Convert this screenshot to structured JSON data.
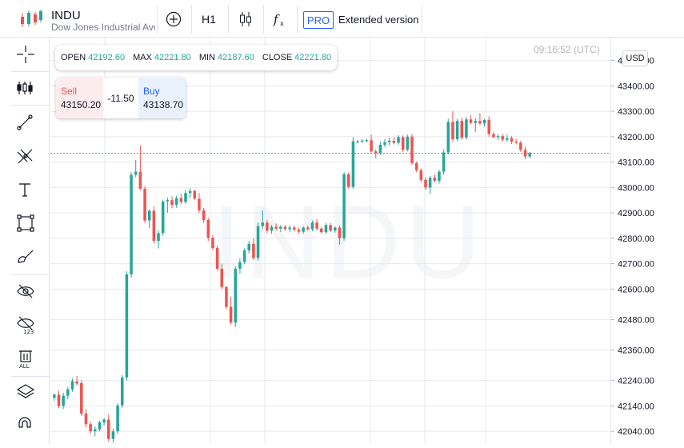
{
  "header": {
    "symbol": "INDU",
    "name": "Dow Jones Industrial Aver",
    "interval": "H1",
    "pro_badge": "PRO",
    "extended_label": "Extended version"
  },
  "ohlc": {
    "open_label": "OPEN",
    "open": "42192.60",
    "max_label": "MAX",
    "max": "42221.80",
    "min_label": "MIN",
    "min": "42187.60",
    "close_label": "CLOSE",
    "close": "42221.80"
  },
  "trade": {
    "sell_label": "Sell",
    "sell_price": "43150.20",
    "spread": "-11.50",
    "buy_label": "Buy",
    "buy_price": "43138.70"
  },
  "chart_meta": {
    "time": "09:16:52 (UTC)",
    "currency": "USD",
    "watermark": "INDU",
    "up_color": "#26a69a",
    "down_color": "#ef5350",
    "current_price_line": 43135
  },
  "sidebar_icons": [
    "crosshair-icon",
    "indicators-icon",
    "trend-line-icon",
    "fib-icon",
    "text-icon",
    "rectangle-icon",
    "brush-icon",
    "hide-drawings-icon",
    "hide-indicators-icon",
    "delete-all-icon",
    "layers-icon",
    "magnet-icon"
  ],
  "chart_data": {
    "type": "candlestick",
    "y_ticks": [
      "43500.00",
      "43400.00",
      "43300.00",
      "43200.00",
      "43100.00",
      "43000.00",
      "42900.00",
      "42800.00",
      "42700.00",
      "42600.00",
      "42480.00",
      "42360.00",
      "42240.00",
      "42140.00",
      "42040.00"
    ],
    "y_range": [
      41990,
      43590
    ],
    "candles": [
      [
        42172,
        42188,
        42160,
        42185
      ],
      [
        42184,
        42200,
        42132,
        42140
      ],
      [
        42140,
        42192,
        42128,
        42180
      ],
      [
        42180,
        42215,
        42166,
        42205
      ],
      [
        42205,
        42248,
        42196,
        42238
      ],
      [
        42236,
        42258,
        42220,
        42228
      ],
      [
        42230,
        42240,
        42100,
        42110
      ],
      [
        42110,
        42128,
        42055,
        42068
      ],
      [
        42068,
        42078,
        42030,
        42040
      ],
      [
        42040,
        42060,
        42020,
        42048
      ],
      [
        42048,
        42082,
        42040,
        42075
      ],
      [
        42075,
        42092,
        42064,
        42086
      ],
      [
        42086,
        42106,
        42000,
        42010
      ],
      [
        42010,
        42050,
        41995,
        42040
      ],
      [
        42040,
        42150,
        42030,
        42142
      ],
      [
        42142,
        42262,
        42132,
        42252
      ],
      [
        42252,
        42670,
        42240,
        42658
      ],
      [
        42658,
        43060,
        42645,
        43050
      ],
      [
        43050,
        43108,
        43040,
        43062
      ],
      [
        43062,
        43165,
        42990,
        42995
      ],
      [
        42995,
        43005,
        42860,
        42870
      ],
      [
        42870,
        42915,
        42840,
        42908
      ],
      [
        42908,
        42925,
        42780,
        42790
      ],
      [
        42790,
        42830,
        42760,
        42820
      ],
      [
        42820,
        42952,
        42810,
        42945
      ],
      [
        42945,
        42960,
        42900,
        42950
      ],
      [
        42950,
        42965,
        42918,
        42932
      ],
      [
        42932,
        42968,
        42920,
        42958
      ],
      [
        42958,
        42975,
        42935,
        42943
      ],
      [
        42943,
        42990,
        42935,
        42978
      ],
      [
        42978,
        42998,
        42960,
        42986
      ],
      [
        42986,
        42992,
        42950,
        42956
      ],
      [
        42956,
        42978,
        42900,
        42910
      ],
      [
        42910,
        42920,
        42860,
        42872
      ],
      [
        42872,
        42880,
        42790,
        42802
      ],
      [
        42802,
        42812,
        42752,
        42762
      ],
      [
        42762,
        42770,
        42672,
        42680
      ],
      [
        42680,
        42700,
        42600,
        42608
      ],
      [
        42608,
        42612,
        42520,
        42530
      ],
      [
        42530,
        42570,
        42460,
        42468
      ],
      [
        42468,
        42690,
        42450,
        42680
      ],
      [
        42680,
        42720,
        42660,
        42706
      ],
      [
        42706,
        42760,
        42698,
        42752
      ],
      [
        42752,
        42790,
        42740,
        42778
      ],
      [
        42778,
        42800,
        42715,
        42722
      ],
      [
        42722,
        42862,
        42712,
        42848
      ],
      [
        42848,
        42910,
        42835,
        42862
      ],
      [
        42862,
        42872,
        42820,
        42830
      ],
      [
        42830,
        42852,
        42818,
        42845
      ],
      [
        42845,
        42858,
        42830,
        42838
      ],
      [
        42838,
        42852,
        42825,
        42845
      ],
      [
        42845,
        42852,
        42830,
        42836
      ],
      [
        42836,
        42850,
        42824,
        42842
      ],
      [
        42842,
        42850,
        42828,
        42834
      ],
      [
        42834,
        42842,
        42818,
        42826
      ],
      [
        42826,
        42848,
        42818,
        42842
      ],
      [
        42842,
        42850,
        42830,
        42836
      ],
      [
        42836,
        42870,
        42828,
        42862
      ],
      [
        42862,
        42875,
        42830,
        42838
      ],
      [
        42838,
        42845,
        42818,
        42824
      ],
      [
        42824,
        42860,
        42816,
        42852
      ],
      [
        42852,
        42860,
        42825,
        42830
      ],
      [
        42830,
        42848,
        42822,
        42842
      ],
      [
        42842,
        42850,
        42775,
        42800
      ],
      [
        42800,
        43060,
        42790,
        43052
      ],
      [
        43052,
        43058,
        42995,
        43002
      ],
      [
        43002,
        43198,
        42995,
        43182
      ],
      [
        43180,
        43188,
        43174,
        43182
      ],
      [
        43182,
        43190,
        43176,
        43184
      ],
      [
        43184,
        43192,
        43178,
        43186
      ],
      [
        43186,
        43208,
        43138,
        43142
      ],
      [
        43142,
        43150,
        43115,
        43135
      ],
      [
        43135,
        43180,
        43128,
        43168
      ],
      [
        43168,
        43190,
        43158,
        43178
      ],
      [
        43178,
        43196,
        43166,
        43184
      ],
      [
        43184,
        43198,
        43170,
        43176
      ],
      [
        43176,
        43206,
        43168,
        43198
      ],
      [
        43198,
        43205,
        43140,
        43148
      ],
      [
        43148,
        43208,
        43142,
        43200
      ],
      [
        43200,
        43210,
        43090,
        43096
      ],
      [
        43096,
        43102,
        43060,
        43068
      ],
      [
        43068,
        43075,
        43020,
        43030
      ],
      [
        43030,
        43040,
        42990,
        43000
      ],
      [
        43000,
        43045,
        42975,
        43038
      ],
      [
        43038,
        43052,
        43020,
        43026
      ],
      [
        43026,
        43070,
        43015,
        43062
      ],
      [
        43062,
        43150,
        43050,
        43138
      ],
      [
        43138,
        43270,
        43130,
        43258
      ],
      [
        43258,
        43300,
        43180,
        43190
      ],
      [
        43190,
        43270,
        43182,
        43262
      ],
      [
        43262,
        43275,
        43188,
        43196
      ],
      [
        43196,
        43278,
        43188,
        43268
      ],
      [
        43268,
        43285,
        43248,
        43254
      ],
      [
        43254,
        43272,
        43218,
        43262
      ],
      [
        43262,
        43292,
        43245,
        43252
      ],
      [
        43252,
        43270,
        43240,
        43266
      ],
      [
        43266,
        43280,
        43200,
        43210
      ],
      [
        43210,
        43218,
        43194,
        43198
      ],
      [
        43198,
        43210,
        43186,
        43202
      ],
      [
        43202,
        43210,
        43180,
        43188
      ],
      [
        43188,
        43208,
        43180,
        43194
      ],
      [
        43194,
        43202,
        43172,
        43180
      ],
      [
        43180,
        43190,
        43170,
        43176
      ],
      [
        43176,
        43184,
        43140,
        43148
      ],
      [
        43148,
        43160,
        43112,
        43122
      ],
      [
        43122,
        43140,
        43115,
        43135
      ]
    ]
  }
}
